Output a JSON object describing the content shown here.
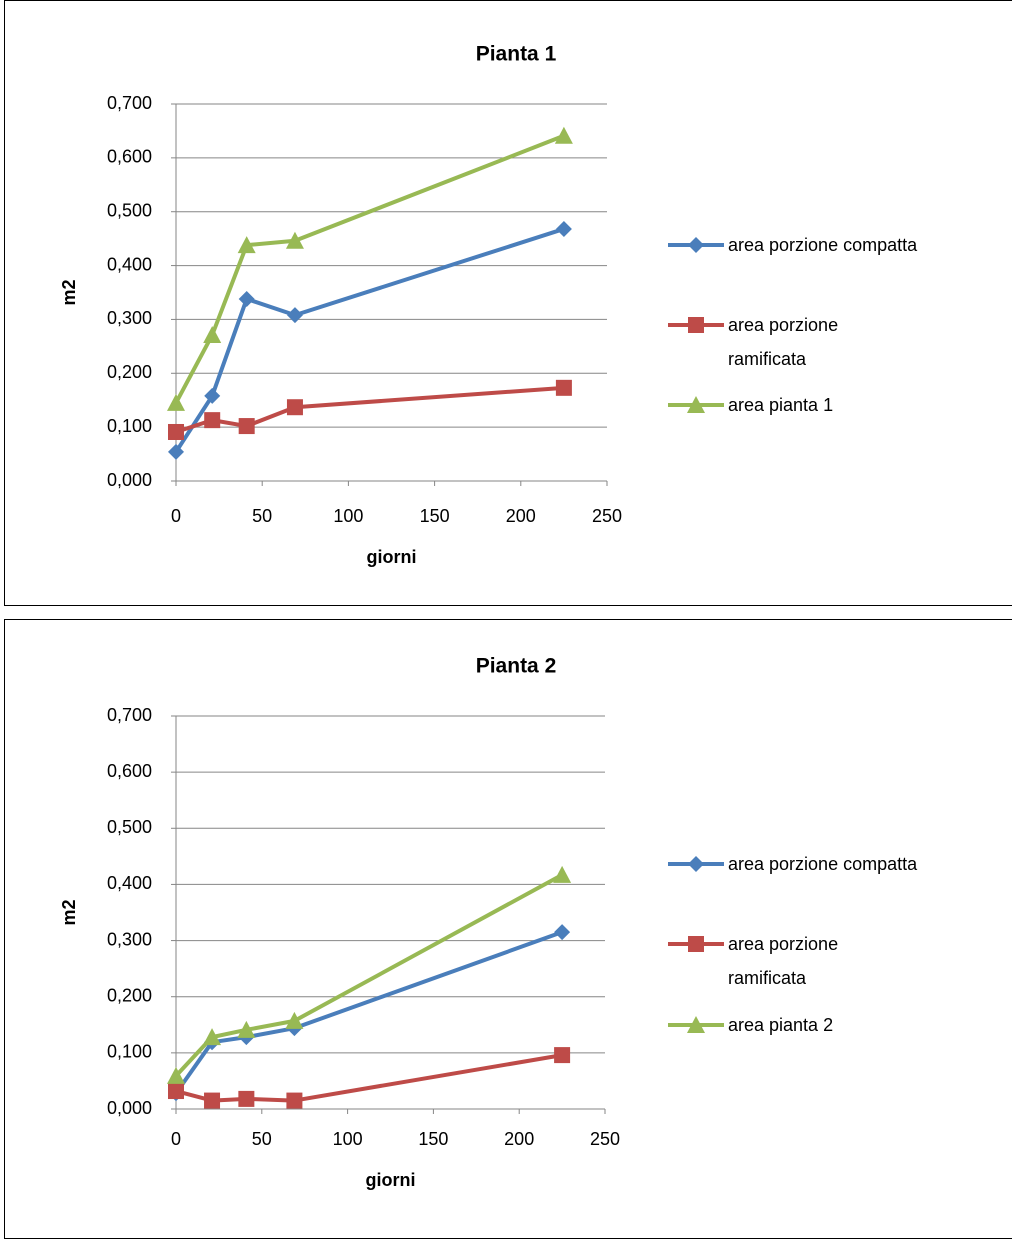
{
  "chart_data": [
    {
      "type": "line",
      "title": "Pianta 1",
      "x_label": "giorni",
      "y_label": "m2",
      "x": [
        0,
        21,
        41,
        69,
        225
      ],
      "xlim": [
        0,
        250
      ],
      "xticks": [
        0,
        50,
        100,
        150,
        200,
        250
      ],
      "ylim": [
        0,
        0.7
      ],
      "yticks": [
        {
          "value": 0,
          "label": "0,000"
        },
        {
          "value": 0.1,
          "label": "0,100"
        },
        {
          "value": 0.2,
          "label": "0,200"
        },
        {
          "value": 0.3,
          "label": "0,300"
        },
        {
          "value": 0.4,
          "label": "0,400"
        },
        {
          "value": 0.5,
          "label": "0,500"
        },
        {
          "value": 0.6,
          "label": "0,600"
        },
        {
          "value": 0.7,
          "label": "0,700"
        }
      ],
      "grid": true,
      "legend": "right",
      "series": [
        {
          "name": "area porzione compatta",
          "color": "#4a7ebb",
          "marker": "diamond",
          "values": [
            0.054,
            0.158,
            0.338,
            0.308,
            0.468
          ]
        },
        {
          "name": "area porzione ramificata",
          "color": "#be4b48",
          "marker": "square",
          "values": [
            0.091,
            0.113,
            0.102,
            0.137,
            0.173
          ]
        },
        {
          "name": "area pianta 1",
          "color": "#98b954",
          "marker": "triangle",
          "values": [
            0.145,
            0.271,
            0.438,
            0.446,
            0.641
          ]
        }
      ]
    },
    {
      "type": "line",
      "title": "Pianta 2",
      "x_label": "giorni",
      "y_label": "m2",
      "x": [
        0,
        21,
        41,
        69,
        225
      ],
      "xlim": [
        0,
        250
      ],
      "xticks": [
        0,
        50,
        100,
        150,
        200,
        250
      ],
      "ylim": [
        0,
        0.7
      ],
      "yticks": [
        {
          "value": 0,
          "label": "0,000"
        },
        {
          "value": 0.1,
          "label": "0,100"
        },
        {
          "value": 0.2,
          "label": "0,200"
        },
        {
          "value": 0.3,
          "label": "0,300"
        },
        {
          "value": 0.4,
          "label": "0,400"
        },
        {
          "value": 0.5,
          "label": "0,500"
        },
        {
          "value": 0.6,
          "label": "0,600"
        },
        {
          "value": 0.7,
          "label": "0,700"
        }
      ],
      "grid": true,
      "legend": "right",
      "series": [
        {
          "name": "area porzione compatta",
          "color": "#4a7ebb",
          "marker": "diamond",
          "values": [
            0.028,
            0.119,
            0.128,
            0.144,
            0.315
          ]
        },
        {
          "name": "area porzione ramificata",
          "color": "#be4b48",
          "marker": "square",
          "values": [
            0.032,
            0.015,
            0.018,
            0.015,
            0.096
          ]
        },
        {
          "name": "area pianta 2",
          "color": "#98b954",
          "marker": "triangle",
          "values": [
            0.059,
            0.128,
            0.141,
            0.157,
            0.417
          ]
        }
      ]
    }
  ]
}
